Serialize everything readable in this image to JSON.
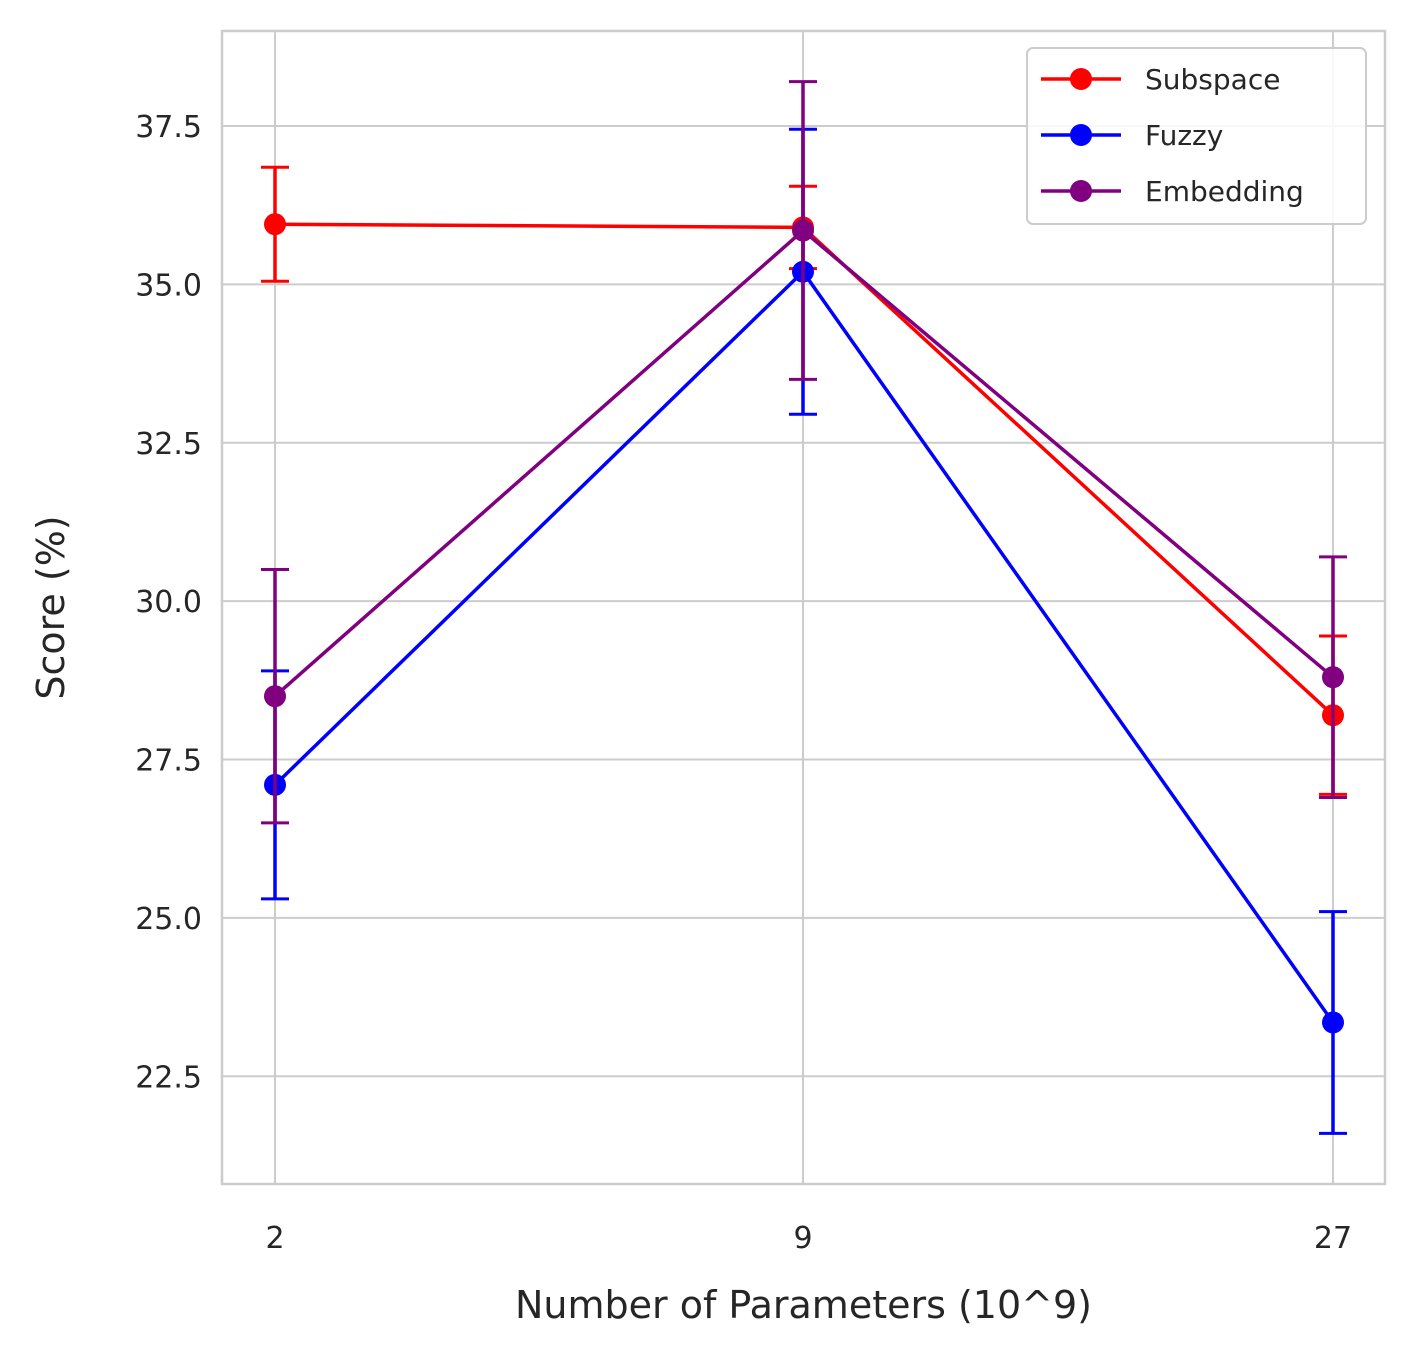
{
  "chart_data": {
    "type": "line",
    "title": "",
    "xlabel": "Number of Parameters (10^9)",
    "ylabel": "Score (%)",
    "categories": [
      "2",
      "9",
      "27"
    ],
    "ylim": [
      20.8,
      39.0
    ],
    "yticks": [
      "22.5",
      "25.0",
      "27.5",
      "30.0",
      "32.5",
      "35.0",
      "37.5"
    ],
    "grid": true,
    "legend_position": "top-right",
    "series": [
      {
        "name": "Subspace",
        "color": "#ff0000",
        "values": [
          35.95,
          35.9,
          28.2
        ],
        "errors": [
          0.9,
          0.65,
          1.25
        ]
      },
      {
        "name": "Fuzzy",
        "color": "#0000ff",
        "values": [
          27.1,
          35.2,
          23.35
        ],
        "errors": [
          1.8,
          2.25,
          1.75
        ]
      },
      {
        "name": "Embedding",
        "color": "#800080",
        "values": [
          28.5,
          35.85,
          28.8
        ],
        "errors": [
          2.0,
          2.35,
          1.9
        ]
      }
    ]
  }
}
